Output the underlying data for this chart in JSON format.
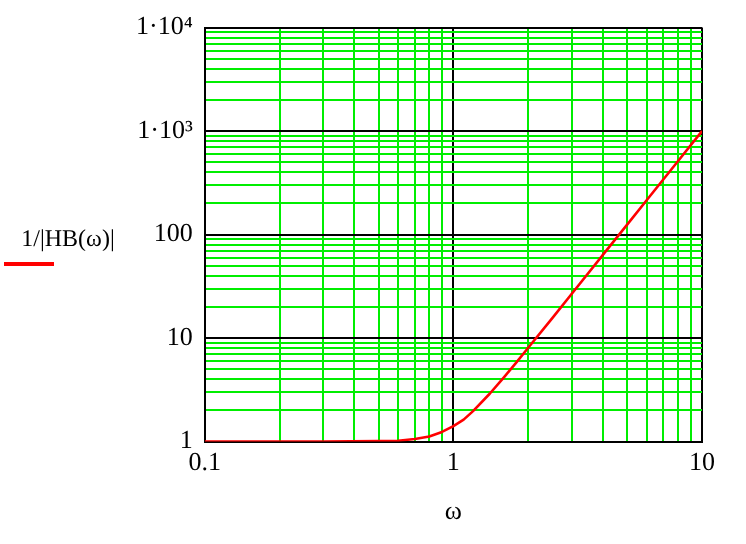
{
  "chart_data": {
    "type": "line",
    "xlabel": "ω",
    "ylabel": "1/|HB(ω)|",
    "log": "xy",
    "grid": true,
    "marker": "none",
    "xlim": [
      0.1,
      10
    ],
    "ylim": [
      1,
      10000
    ],
    "xticks": [
      0.1,
      {
        "value": 0.2,
        "label": null
      },
      {
        "value": 0.3,
        "label": null
      },
      {
        "value": 0.4,
        "label": null
      },
      {
        "value": 0.5,
        "label": null
      },
      {
        "value": 0.6,
        "label": null
      },
      {
        "value": 0.7,
        "label": null
      },
      {
        "value": 0.8,
        "label": null
      },
      {
        "value": 0.9,
        "label": null
      },
      1,
      {
        "value": 2,
        "label": null
      },
      {
        "value": 3,
        "label": null
      },
      {
        "value": 4,
        "label": null
      },
      {
        "value": 5,
        "label": null
      },
      {
        "value": 6,
        "label": null
      },
      {
        "value": 7,
        "label": null
      },
      {
        "value": 8,
        "label": null
      },
      {
        "value": 9,
        "label": null
      },
      10
    ],
    "yticks": [
      1,
      {
        "value": 2,
        "label": null
      },
      {
        "value": 3,
        "label": null
      },
      {
        "value": 4,
        "label": null
      },
      {
        "value": 5,
        "label": null
      },
      {
        "value": 6,
        "label": null
      },
      {
        "value": 7,
        "label": null
      },
      {
        "value": 8,
        "label": null
      },
      {
        "value": 9,
        "label": null
      },
      10,
      {
        "value": 20,
        "label": null
      },
      {
        "value": 30,
        "label": null
      },
      {
        "value": 40,
        "label": null
      },
      {
        "value": 50,
        "label": null
      },
      {
        "value": 60,
        "label": null
      },
      {
        "value": 70,
        "label": null
      },
      {
        "value": 80,
        "label": null
      },
      {
        "value": 90,
        "label": null
      },
      100,
      {
        "value": 200,
        "label": null
      },
      {
        "value": 300,
        "label": null
      },
      {
        "value": 400,
        "label": null
      },
      {
        "value": 500,
        "label": null
      },
      {
        "value": 600,
        "label": null
      },
      {
        "value": 700,
        "label": null
      },
      {
        "value": 800,
        "label": null
      },
      {
        "value": 900,
        "label": null
      },
      {
        "value": 1000,
        "label": "1·10³"
      },
      {
        "value": 2000,
        "label": null
      },
      {
        "value": 3000,
        "label": null
      },
      {
        "value": 4000,
        "label": null
      },
      {
        "value": 5000,
        "label": null
      },
      {
        "value": 6000,
        "label": null
      },
      {
        "value": 7000,
        "label": null
      },
      {
        "value": 8000,
        "label": null
      },
      {
        "value": 9000,
        "label": null
      },
      {
        "value": 10000,
        "label": "1·10⁴"
      }
    ],
    "series": [
      {
        "color": "#ff0000",
        "x": [
          0.1,
          0.3,
          0.5,
          0.6,
          0.7,
          0.8,
          0.9,
          1,
          1.1,
          1.2,
          1.4,
          1.6,
          1.8,
          2,
          2.5,
          3,
          4,
          5,
          6,
          7,
          8,
          10
        ],
        "values": [
          1,
          1,
          1.01,
          1.02,
          1.06,
          1.12,
          1.24,
          1.41,
          1.63,
          1.97,
          2.9,
          4.2,
          5.9,
          8.06,
          15.6,
          27,
          64,
          125,
          216,
          343,
          512,
          1000
        ]
      }
    ]
  }
}
